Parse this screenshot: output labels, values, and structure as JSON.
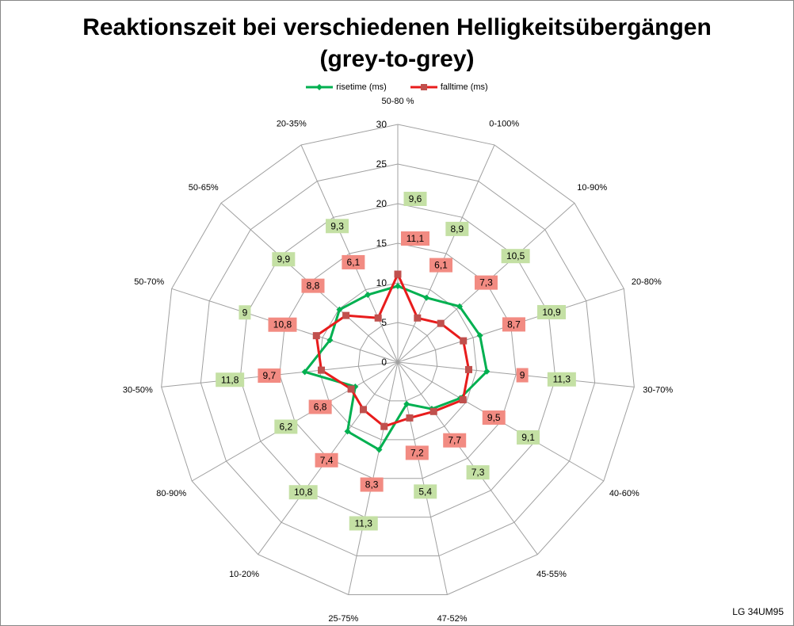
{
  "chart_data": {
    "type": "radar",
    "title": "Reaktionszeit bei verschiedenen Helligkeitsübergängen",
    "subtitle": "(grey-to-grey)",
    "categories": [
      "50-80 %",
      "0-100%",
      "10-90%",
      "20-80%",
      "30-70%",
      "40-60%",
      "45-55%",
      "47-52%",
      "25-75%",
      "10-20%",
      "80-90%",
      "30-50%",
      "50-70%",
      "50-65%",
      "20-35%"
    ],
    "series": [
      {
        "name": "risetime (ms)",
        "color": "#00b050",
        "label_bg": "#c4e0a4",
        "values": [
          9.6,
          8.9,
          10.5,
          10.9,
          11.3,
          9.1,
          7.3,
          5.4,
          11.3,
          10.8,
          6.2,
          11.8,
          9,
          9.9,
          9.3
        ]
      },
      {
        "name": "falltime (ms)",
        "color": "#e81c1c",
        "label_bg": "#f28b82",
        "values": [
          11.1,
          6.1,
          7.3,
          8.7,
          9,
          9.5,
          7.7,
          7.2,
          8.3,
          7.4,
          6.8,
          9.7,
          10.8,
          8.8,
          6.1
        ]
      }
    ],
    "rlim": [
      0,
      30
    ],
    "ticks": [
      0,
      5,
      10,
      15,
      20,
      25,
      30
    ],
    "legend_position": "top",
    "grid": true
  },
  "credit": "LG 34UM95"
}
